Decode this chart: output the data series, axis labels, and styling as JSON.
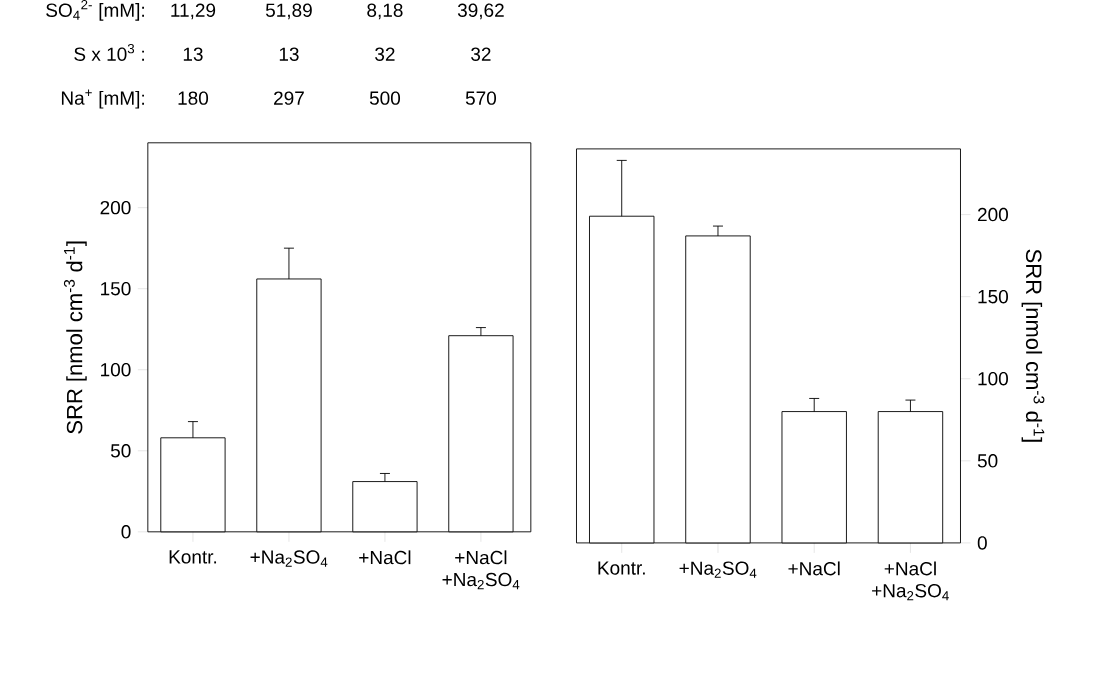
{
  "chart_data": [
    {
      "type": "bar",
      "ylabel": "SRR [nmol cm$^{-3}$ d$^{-1}$]",
      "categories": [
        "Kontr.",
        "+Na$_{2}$SO$_{4}$",
        "+NaCl",
        "+NaCl +Na$_{2}$SO$_{4}$"
      ],
      "values": [
        58,
        156,
        31,
        121
      ],
      "errors": [
        10,
        19,
        5,
        5
      ],
      "color": "#ffffff",
      "ylim": [
        0,
        240
      ],
      "yticks": [
        0,
        50,
        100,
        150,
        200
      ],
      "annotations": [
        "SO$_{4}$$^{2-}$ [mM]:",
        "11,29",
        "51,89",
        "8,18",
        "39,62",
        "S x 10$^{3}$ :",
        "13",
        "13",
        "32",
        "32",
        "Na$^{+}$ [mM]:",
        "180",
        "297",
        "500",
        "570"
      ]
    },
    {
      "type": "bar",
      "ylabel": "SRR [nmol cm$^{-3}$ d$^{-1}$]",
      "categories": [
        "Kontr.",
        "+Na$_{2}$SO$_{4}$",
        "+NaCl",
        "+NaCl +Na$_{2}$SO$_{4}$"
      ],
      "values": [
        199,
        187,
        80,
        80
      ],
      "errors": [
        34,
        6,
        8,
        7
      ],
      "color": "#ffffff",
      "ylim": [
        0,
        240
      ],
      "yticks": [
        0,
        50,
        100,
        150,
        200
      ]
    }
  ]
}
